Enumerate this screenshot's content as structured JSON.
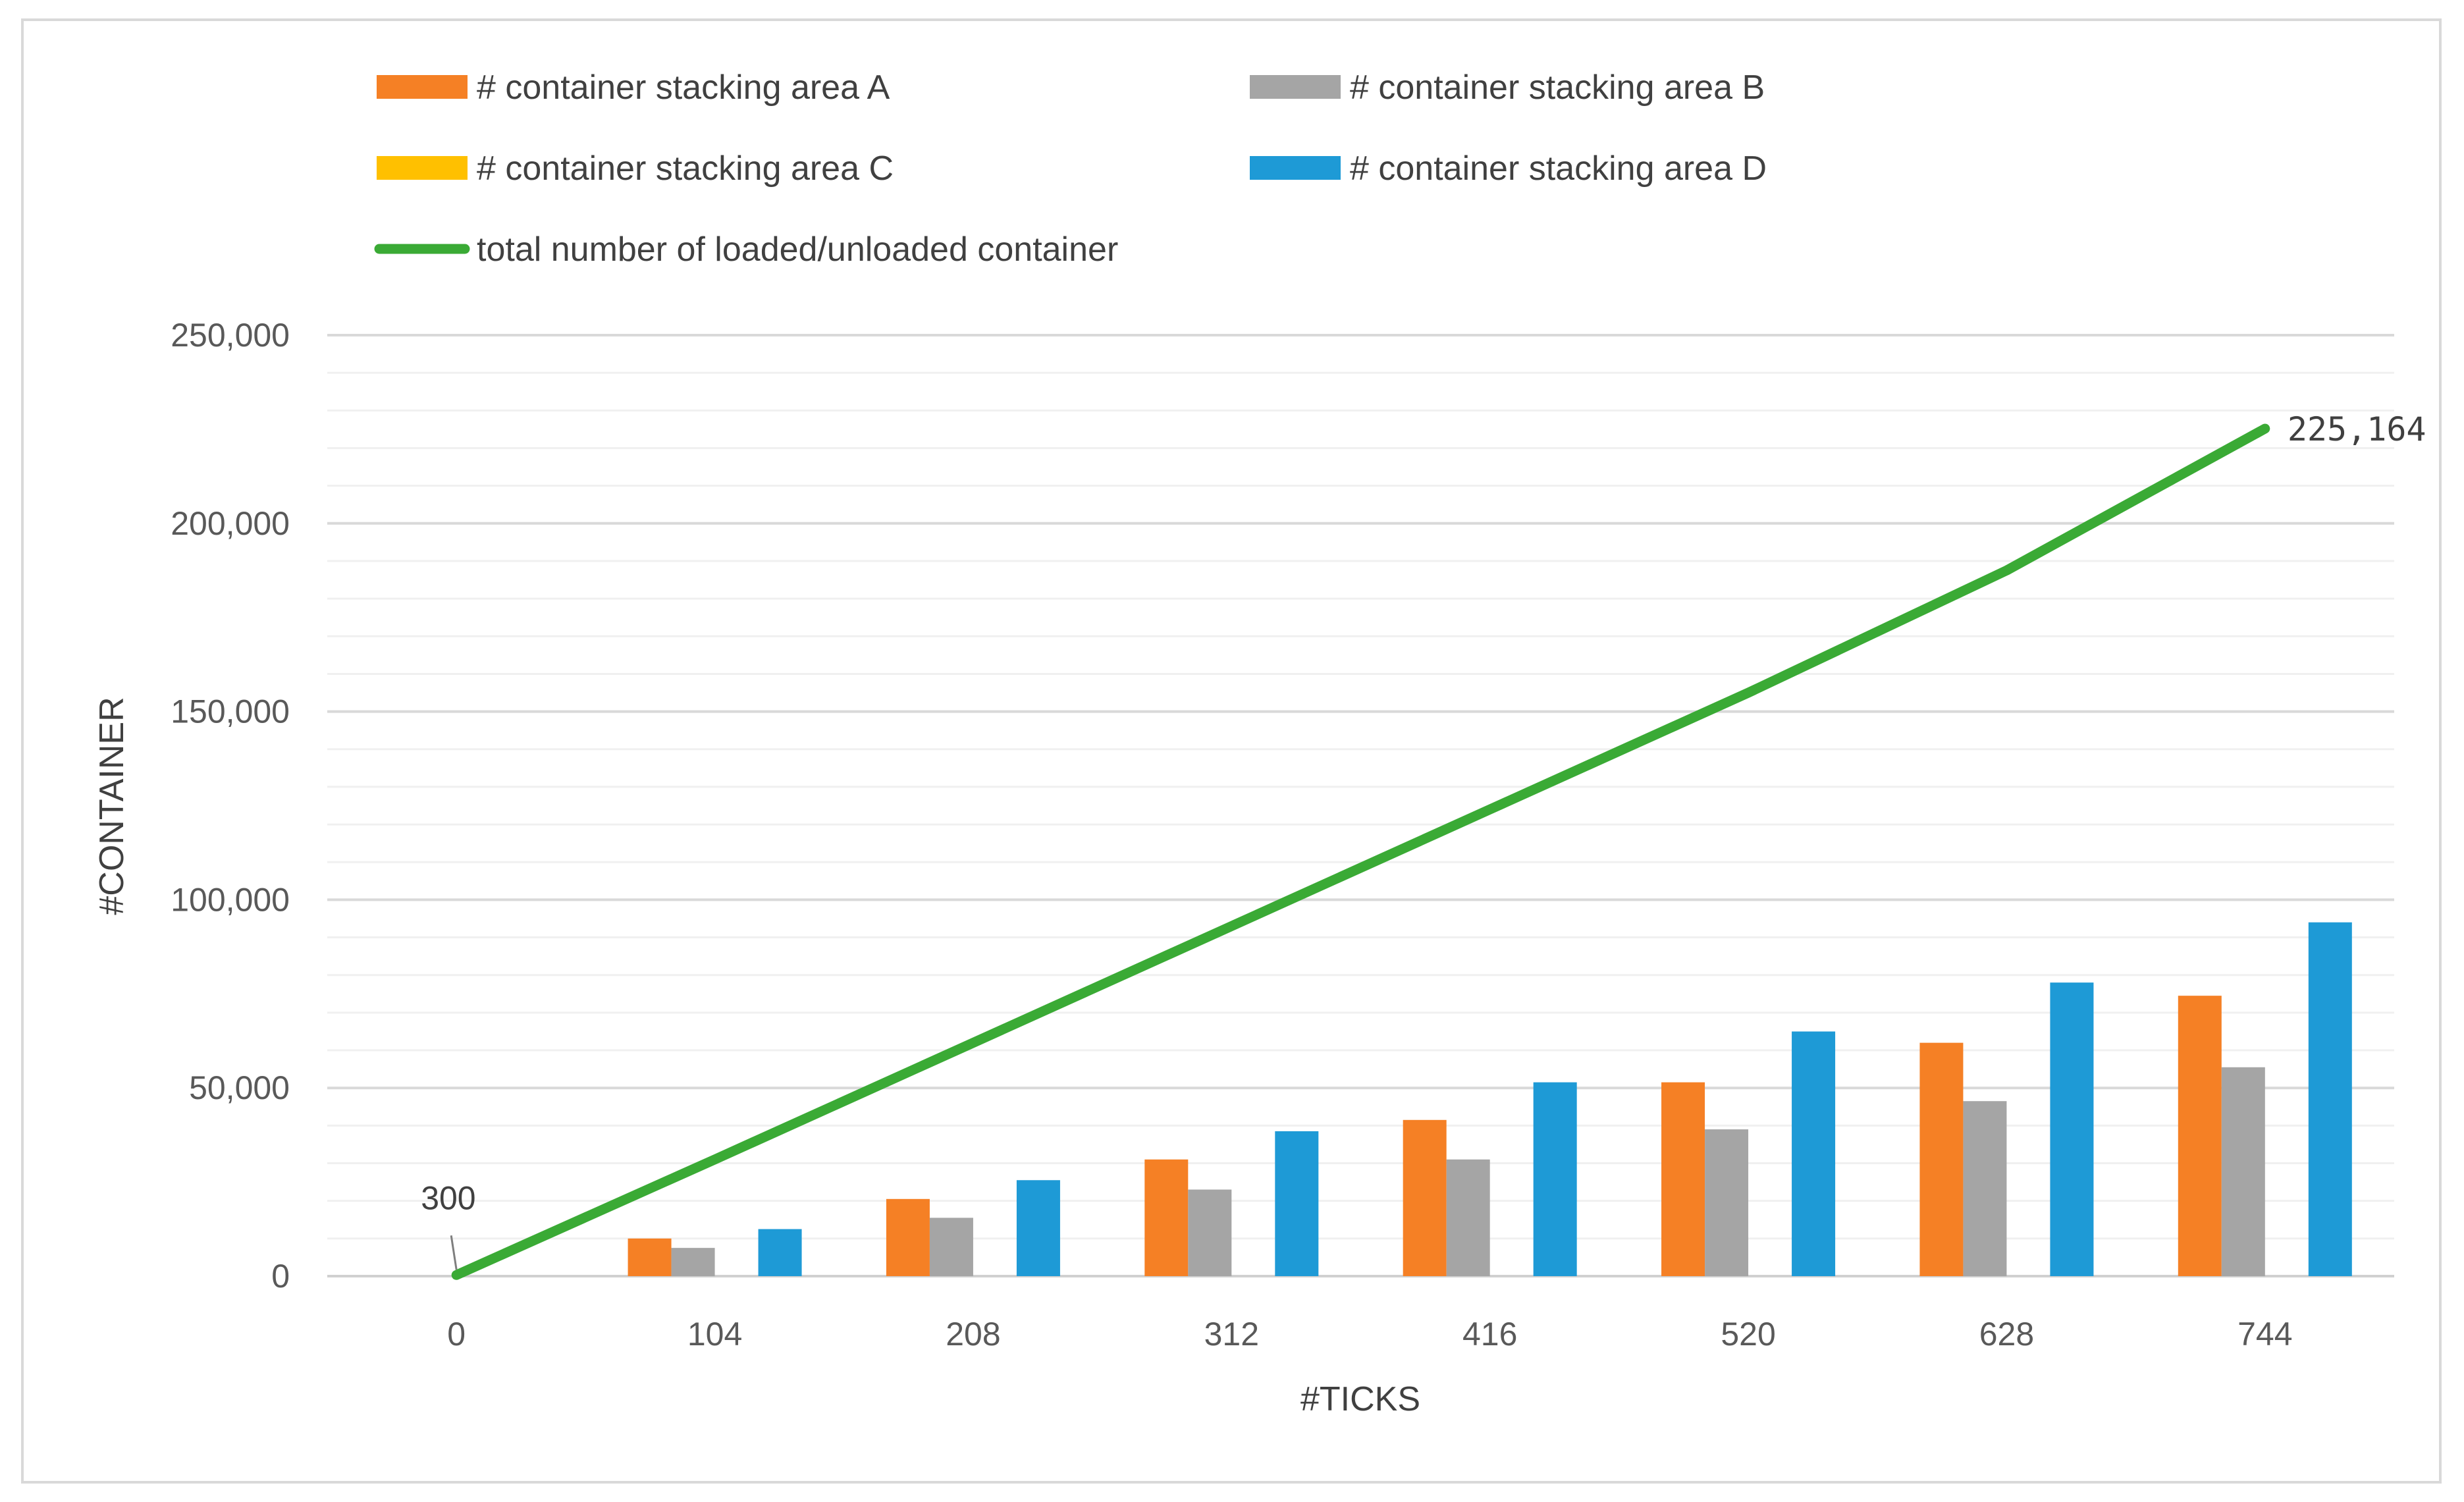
{
  "chart_data": {
    "type": "bar",
    "title": "",
    "xlabel": "#TICKS",
    "ylabel": "#CONTAINER",
    "categories": [
      "0",
      "104",
      "208",
      "312",
      "416",
      "520",
      "628",
      "744"
    ],
    "ylim": [
      0,
      250000
    ],
    "yticks": [
      0,
      50000,
      100000,
      150000,
      200000,
      250000
    ],
    "ytick_labels": [
      "0",
      "50,000",
      "100,000",
      "150,000",
      "200,000",
      "250,000"
    ],
    "grid": "horizontal major and minor",
    "legend_position": "top",
    "series": [
      {
        "name": "# container stacking area A",
        "type": "bar",
        "color": "#f58025",
        "values": [
          0,
          10000,
          20500,
          31000,
          41500,
          51500,
          62000,
          74500
        ]
      },
      {
        "name": "# container stacking area B",
        "type": "bar",
        "color": "#a5a5a5",
        "values": [
          0,
          7500,
          15500,
          23000,
          31000,
          39000,
          46500,
          55500
        ]
      },
      {
        "name": "# container stacking area C",
        "type": "bar",
        "color": "#ffc000",
        "values": [
          0,
          0,
          0,
          0,
          0,
          0,
          0,
          0
        ]
      },
      {
        "name": "# container stacking area D",
        "type": "bar",
        "color": "#1e9ad6",
        "values": [
          0,
          12500,
          25500,
          38500,
          51500,
          65000,
          78000,
          94000
        ]
      },
      {
        "name": "total number of loaded/unloaded container",
        "type": "line",
        "color": "#3aaa35",
        "values": [
          300,
          31000,
          62000,
          93000,
          124000,
          155000,
          187500,
          225164
        ]
      }
    ],
    "annotations": [
      {
        "series": "total number of loaded/unloaded container",
        "category": "0",
        "label": "300"
      },
      {
        "series": "total number of loaded/unloaded container",
        "category": "744",
        "label": "225,164"
      }
    ]
  }
}
